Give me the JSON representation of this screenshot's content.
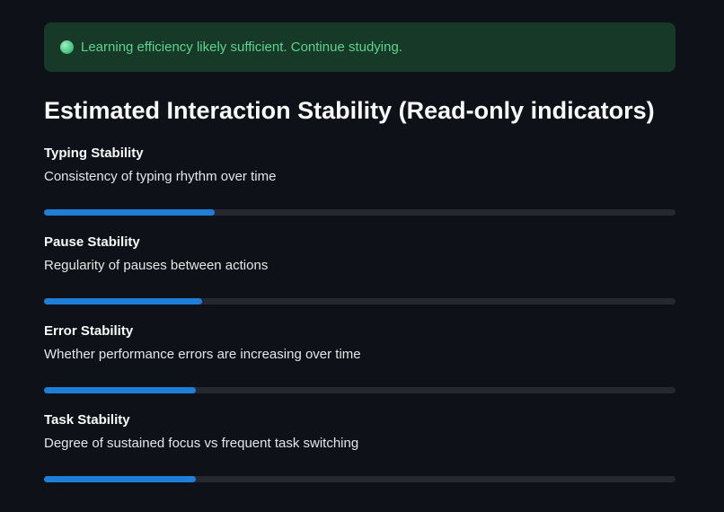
{
  "alert": {
    "icon": "green-circle-icon",
    "text": "Learning efficiency likely sufficient. Continue studying.",
    "color": "#5fd38d"
  },
  "section": {
    "title": "Estimated Interaction Stability (Read-only indicators)"
  },
  "metrics": [
    {
      "title": "Typing Stability",
      "description": "Consistency of typing rhythm over time",
      "progress": 27
    },
    {
      "title": "Pause Stability",
      "description": "Regularity of pauses between actions",
      "progress": 25
    },
    {
      "title": "Error Stability",
      "description": "Whether performance errors are increasing over time",
      "progress": 24
    },
    {
      "title": "Task Stability",
      "description": "Degree of sustained focus vs frequent task switching",
      "progress": 24
    }
  ],
  "colors": {
    "progress_fill": "#1f7fd8",
    "track": "#262730",
    "background": "#0e1117"
  }
}
